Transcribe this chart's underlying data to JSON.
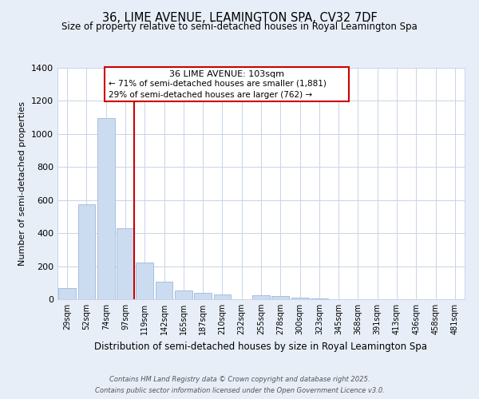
{
  "title": "36, LIME AVENUE, LEAMINGTON SPA, CV32 7DF",
  "subtitle": "Size of property relative to semi-detached houses in Royal Leamington Spa",
  "xlabel": "Distribution of semi-detached houses by size in Royal Leamington Spa",
  "ylabel": "Number of semi-detached properties",
  "bin_labels": [
    "29sqm",
    "52sqm",
    "74sqm",
    "97sqm",
    "119sqm",
    "142sqm",
    "165sqm",
    "187sqm",
    "210sqm",
    "232sqm",
    "255sqm",
    "278sqm",
    "300sqm",
    "323sqm",
    "345sqm",
    "368sqm",
    "391sqm",
    "413sqm",
    "436sqm",
    "458sqm",
    "481sqm"
  ],
  "bar_values": [
    70,
    575,
    1095,
    430,
    220,
    105,
    55,
    40,
    30,
    0,
    25,
    20,
    10,
    5,
    0,
    0,
    0,
    0,
    0,
    0,
    0
  ],
  "bar_color": "#ccdcf0",
  "bar_edge_color": "#9ab8d8",
  "vline_color": "#cc0000",
  "annotation_title": "36 LIME AVENUE: 103sqm",
  "annotation_line1": "← 71% of semi-detached houses are smaller (1,881)",
  "annotation_line2": "29% of semi-detached houses are larger (762) →",
  "annotation_box_color": "#ffffff",
  "annotation_box_edge": "#cc0000",
  "ylim": [
    0,
    1400
  ],
  "yticks": [
    0,
    200,
    400,
    600,
    800,
    1000,
    1200,
    1400
  ],
  "footer_line1": "Contains HM Land Registry data © Crown copyright and database right 2025.",
  "footer_line2": "Contains public sector information licensed under the Open Government Licence v3.0.",
  "background_color": "#e8eef8",
  "plot_bg_color": "#ffffff",
  "grid_color": "#c8d4e8"
}
